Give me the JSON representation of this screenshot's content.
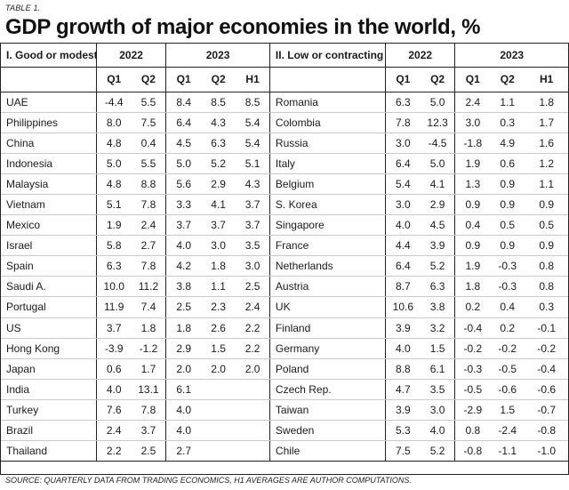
{
  "table_label": "TABLE 1.",
  "title": "GDP growth of major economies in the world, %",
  "left": {
    "section": "I. Good or modest",
    "years": [
      "2022",
      "2023"
    ],
    "quarters": [
      "Q1",
      "Q2",
      "Q1",
      "Q2",
      "H1"
    ],
    "rows": [
      {
        "country": "UAE",
        "v": [
          "-4.4",
          "5.5",
          "8.4",
          "8.5",
          "8.5"
        ]
      },
      {
        "country": "Philippines",
        "v": [
          "8.0",
          "7.5",
          "6.4",
          "4.3",
          "5.4"
        ]
      },
      {
        "country": "China",
        "v": [
          "4.8",
          "0.4",
          "4.5",
          "6.3",
          "5.4"
        ]
      },
      {
        "country": "Indonesia",
        "v": [
          "5.0",
          "5.5",
          "5.0",
          "5.2",
          "5.1"
        ]
      },
      {
        "country": "Malaysia",
        "v": [
          "4.8",
          "8.8",
          "5.6",
          "2.9",
          "4.3"
        ]
      },
      {
        "country": "Vietnam",
        "v": [
          "5.1",
          "7.8",
          "3.3",
          "4.1",
          "3.7"
        ]
      },
      {
        "country": "Mexico",
        "v": [
          "1.9",
          "2.4",
          "3.7",
          "3.7",
          "3.7"
        ]
      },
      {
        "country": "Israel",
        "v": [
          "5.8",
          "2.7",
          "4.0",
          "3.0",
          "3.5"
        ]
      },
      {
        "country": "Spain",
        "v": [
          "6.3",
          "7.8",
          "4.2",
          "1.8",
          "3.0"
        ]
      },
      {
        "country": "Saudi A.",
        "v": [
          "10.0",
          "11.2",
          "3.8",
          "1.1",
          "2.5"
        ]
      },
      {
        "country": "Portugal",
        "v": [
          "11.9",
          "7.4",
          "2.5",
          "2.3",
          "2.4"
        ]
      },
      {
        "country": "US",
        "v": [
          "3.7",
          "1.8",
          "1.8",
          "2.6",
          "2.2"
        ]
      },
      {
        "country": "Hong Kong",
        "v": [
          "-3.9",
          "-1.2",
          "2.9",
          "1.5",
          "2.2"
        ]
      },
      {
        "country": "Japan",
        "v": [
          "0.6",
          "1.7",
          "2.0",
          "2.0",
          "2.0"
        ]
      },
      {
        "country": "India",
        "v": [
          "4.0",
          "13.1",
          "6.1",
          "",
          ""
        ]
      },
      {
        "country": "Turkey",
        "v": [
          "7.6",
          "7.8",
          "4.0",
          "",
          ""
        ]
      },
      {
        "country": "Brazil",
        "v": [
          "2.4",
          "3.7",
          "4.0",
          "",
          ""
        ]
      },
      {
        "country": "Thailand",
        "v": [
          "2.2",
          "2.5",
          "2.7",
          "",
          ""
        ]
      }
    ]
  },
  "right": {
    "section": "II. Low or contracting",
    "years": [
      "2022",
      "2023"
    ],
    "quarters": [
      "Q1",
      "Q2",
      "Q1",
      "Q2",
      "H1"
    ],
    "rows": [
      {
        "country": "Romania",
        "v": [
          "6.3",
          "5.0",
          "2.4",
          "1.1",
          "1.8"
        ]
      },
      {
        "country": "Colombia",
        "v": [
          "7.8",
          "12.3",
          "3.0",
          "0.3",
          "1.7"
        ]
      },
      {
        "country": "Russia",
        "v": [
          "3.0",
          "-4.5",
          "-1.8",
          "4.9",
          "1.6"
        ]
      },
      {
        "country": "Italy",
        "v": [
          "6.4",
          "5.0",
          "1.9",
          "0.6",
          "1.2"
        ]
      },
      {
        "country": "Belgium",
        "v": [
          "5.4",
          "4.1",
          "1.3",
          "0.9",
          "1.1"
        ]
      },
      {
        "country": "S. Korea",
        "v": [
          "3.0",
          "2.9",
          "0.9",
          "0.9",
          "0.9"
        ]
      },
      {
        "country": "Singapore",
        "v": [
          "4.0",
          "4.5",
          "0.4",
          "0.5",
          "0.5"
        ]
      },
      {
        "country": "France",
        "v": [
          "4.4",
          "3.9",
          "0.9",
          "0.9",
          "0.9"
        ]
      },
      {
        "country": "Netherlands",
        "v": [
          "6.4",
          "5.2",
          "1.9",
          "-0.3",
          "0.8"
        ]
      },
      {
        "country": "Austria",
        "v": [
          "8.7",
          "6.3",
          "1.8",
          "-0.3",
          "0.8"
        ]
      },
      {
        "country": "UK",
        "v": [
          "10.6",
          "3.8",
          "0.2",
          "0.4",
          "0.3"
        ]
      },
      {
        "country": "Finland",
        "v": [
          "3.9",
          "3.2",
          "-0.4",
          "0.2",
          "-0.1"
        ]
      },
      {
        "country": "Germany",
        "v": [
          "4.0",
          "1.5",
          "-0.2",
          "-0.2",
          "-0.2"
        ]
      },
      {
        "country": "Poland",
        "v": [
          "8.8",
          "6.1",
          "-0.3",
          "-0.5",
          "-0.4"
        ]
      },
      {
        "country": "Czech Rep.",
        "v": [
          "4.7",
          "3.5",
          "-0.5",
          "-0.6",
          "-0.6"
        ]
      },
      {
        "country": "Taiwan",
        "v": [
          "3.9",
          "3.0",
          "-2.9",
          "1.5",
          "-0.7"
        ]
      },
      {
        "country": "Sweden",
        "v": [
          "5.3",
          "4.0",
          "0.8",
          "-2.4",
          "-0.8"
        ]
      },
      {
        "country": "Chile",
        "v": [
          "7.5",
          "5.2",
          "-0.8",
          "-1.1",
          "-1.0"
        ]
      }
    ]
  },
  "bold_row_index": 1,
  "source": "SOURCE: QUARTERLY DATA FROM TRADING ECONOMICS, H1 AVERAGES ARE AUTHOR COMPUTATIONS."
}
